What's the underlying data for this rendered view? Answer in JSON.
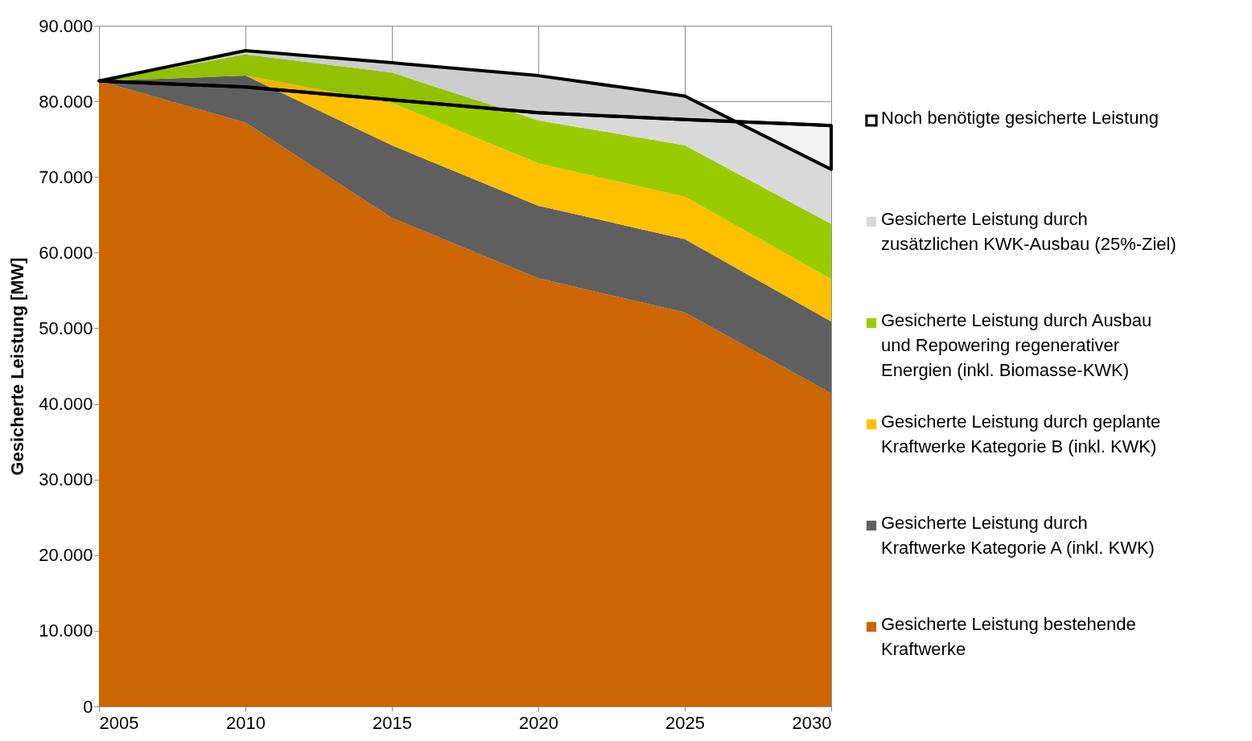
{
  "chart_data": {
    "type": "area",
    "stacked": true,
    "ylabel": "Gesicherte Leistung [MW]",
    "x": [
      2005,
      2010,
      2015,
      2020,
      2025,
      2030
    ],
    "xlim": [
      2005,
      2030
    ],
    "xticks": [
      2005,
      2010,
      2015,
      2020,
      2025,
      2030
    ],
    "ylim": [
      0,
      90000
    ],
    "yticks": [
      {
        "value": 0,
        "label": "0"
      },
      {
        "value": 10000,
        "label": "10.000"
      },
      {
        "value": 20000,
        "label": "20.000"
      },
      {
        "value": 30000,
        "label": "30.000"
      },
      {
        "value": 40000,
        "label": "40.000"
      },
      {
        "value": 50000,
        "label": "50.000"
      },
      {
        "value": 60000,
        "label": "60.000"
      },
      {
        "value": 70000,
        "label": "70.000"
      },
      {
        "value": 80000,
        "label": "80.000"
      },
      {
        "value": 90000,
        "label": "90.000"
      }
    ],
    "grid": true,
    "legend": "right",
    "series": [
      {
        "name": "Gesicherte Leistung bestehende Kraftwerke",
        "color": "#cc6600",
        "values": [
          82700,
          77200,
          64600,
          56600,
          52100,
          41400
        ]
      },
      {
        "name": "Gesicherte Leistung durch Kraftwerke Kategorie A (inkl. KWK)",
        "color": "#5f5f5f",
        "values": [
          0,
          6200,
          9600,
          9600,
          9700,
          9500
        ]
      },
      {
        "name": "Gesicherte Leistung durch geplante Kraftwerke Kategorie B (inkl. KWK)",
        "color": "#ffc000",
        "values": [
          0,
          0,
          5600,
          5600,
          5600,
          5600
        ]
      },
      {
        "name": "Gesicherte Leistung durch Ausbau und Repowering regenerativer Energien (inkl. Biomasse-KWK)",
        "color": "#99cc00",
        "values": [
          0,
          2800,
          4000,
          5700,
          6800,
          7300
        ]
      },
      {
        "name": "Gesicherte Leistung durch zusätzlichen KWK-Ausbau (25%-Ziel)",
        "color": "#d9d9d9",
        "values": [
          0,
          500,
          1300,
          5900,
          6500,
          7200
        ]
      },
      {
        "name": "Noch benötigte gesicherte Leistung",
        "type": "line",
        "color": "#000000",
        "values": [
          82700,
          81900,
          80200,
          78500,
          77600,
          76800
        ],
        "lower": [
          82700,
          81900,
          80200,
          78500,
          77600,
          76800
        ],
        "upper": [
          82700,
          86700,
          85100,
          83400,
          80700,
          71000
        ]
      }
    ]
  }
}
